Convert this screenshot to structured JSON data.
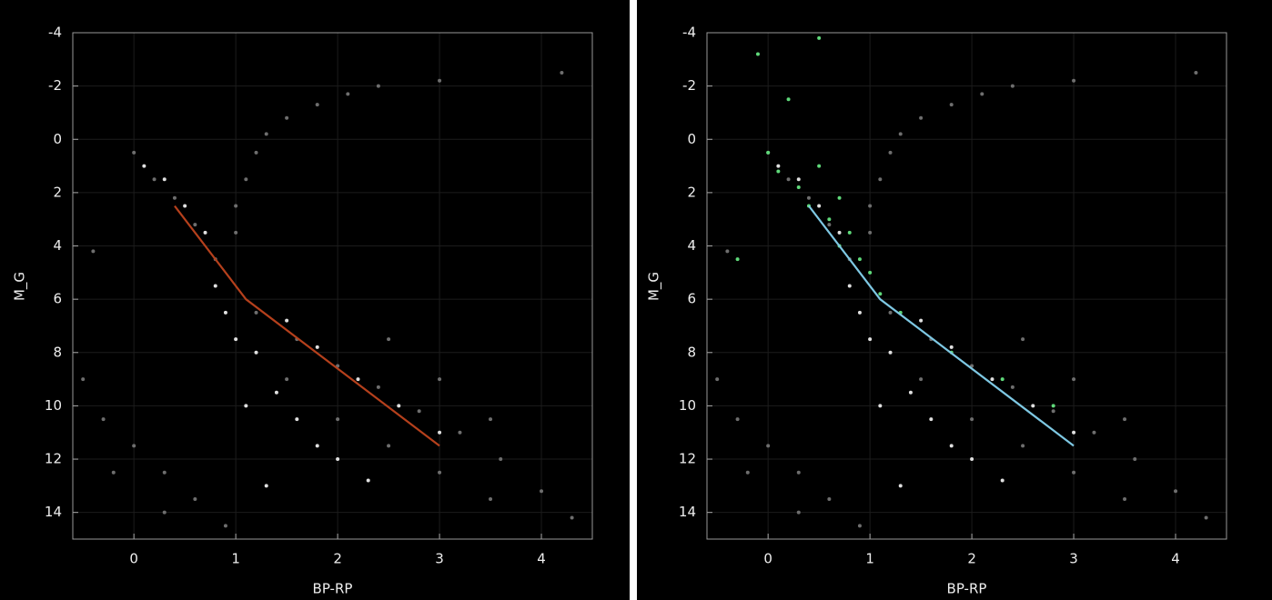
{
  "chart_data": [
    {
      "type": "scatter",
      "xlabel": "BP-RP",
      "ylabel": "M_G",
      "xlim": [
        -0.6,
        4.5
      ],
      "ylim": [
        -4,
        15
      ],
      "invert_y": true,
      "xticks": [
        0,
        1,
        2,
        3,
        4
      ],
      "yticks": [
        -4,
        -2,
        0,
        2,
        4,
        6,
        8,
        10,
        12,
        14
      ],
      "grid": true,
      "grid_color": "#1c1c1c",
      "series": [
        {
          "type": "scatter",
          "color": "#6e6e6e",
          "x": [
            1.0,
            1.1,
            1.2,
            1.3,
            1.5,
            1.8,
            2.1,
            2.4,
            1.0,
            0.0,
            0.2,
            0.4,
            0.6,
            0.8,
            1.2,
            1.6,
            2.0,
            2.4,
            2.8,
            3.2,
            3.6,
            4.0,
            4.3,
            1.5,
            2.0,
            2.5,
            3.0,
            3.5,
            2.5,
            3.0,
            3.5,
            -0.5,
            -0.3,
            0.0,
            0.3,
            0.6,
            0.9,
            -0.2,
            0.3,
            -0.4,
            3.0,
            4.2
          ],
          "values": [
            2.5,
            1.5,
            0.5,
            -0.2,
            -0.8,
            -1.3,
            -1.7,
            -2.0,
            3.5,
            0.5,
            1.5,
            2.2,
            3.2,
            4.5,
            6.5,
            7.5,
            8.5,
            9.3,
            10.2,
            11.0,
            12.0,
            13.2,
            14.2,
            9,
            10.5,
            11.5,
            12.5,
            13.5,
            7.5,
            9,
            10.5,
            9,
            10.5,
            11.5,
            12.5,
            13.5,
            14.5,
            12.5,
            14,
            4.2,
            -2.2,
            -2.5
          ]
        },
        {
          "type": "scatter",
          "color": "#e0e0e0",
          "x": [
            0.8,
            0.9,
            1.0,
            1.2,
            1.4,
            1.6,
            1.8,
            2.0,
            2.3,
            0.5,
            0.3,
            0.1,
            0.7,
            1.5,
            1.8,
            2.2,
            2.6,
            3.0,
            1.1,
            1.3
          ],
          "values": [
            5.5,
            6.5,
            7.5,
            8.0,
            9.5,
            10.5,
            11.5,
            12.0,
            12.8,
            2.5,
            1.5,
            1.0,
            3.5,
            6.8,
            7.8,
            9.0,
            10.0,
            11.0,
            10,
            13
          ]
        },
        {
          "type": "line",
          "color": "#b5401c",
          "x": [
            0.4,
            1.1,
            3.0
          ],
          "values": [
            2.5,
            6.0,
            11.5
          ]
        }
      ]
    },
    {
      "type": "scatter",
      "xlabel": "BP-RP",
      "ylabel": "M_G",
      "xlim": [
        -0.6,
        4.5
      ],
      "ylim": [
        -4,
        15
      ],
      "invert_y": true,
      "xticks": [
        0,
        1,
        2,
        3,
        4
      ],
      "yticks": [
        -4,
        -2,
        0,
        2,
        4,
        6,
        8,
        10,
        12,
        14
      ],
      "grid": true,
      "grid_color": "#1c1c1c",
      "series": [
        {
          "type": "scatter",
          "color": "#6e6e6e",
          "x": [
            1.0,
            1.1,
            1.2,
            1.3,
            1.5,
            1.8,
            2.1,
            2.4,
            1.0,
            0.0,
            0.2,
            0.4,
            0.6,
            0.8,
            1.2,
            1.6,
            2.0,
            2.4,
            2.8,
            3.2,
            3.6,
            4.0,
            4.3,
            1.5,
            2.0,
            2.5,
            3.0,
            3.5,
            2.5,
            3.0,
            3.5,
            -0.5,
            -0.3,
            0.0,
            0.3,
            0.6,
            0.9,
            -0.2,
            0.3,
            -0.4,
            3.0,
            4.2
          ],
          "values": [
            2.5,
            1.5,
            0.5,
            -0.2,
            -0.8,
            -1.3,
            -1.7,
            -2.0,
            3.5,
            0.5,
            1.5,
            2.2,
            3.2,
            4.5,
            6.5,
            7.5,
            8.5,
            9.3,
            10.2,
            11.0,
            12.0,
            13.2,
            14.2,
            9,
            10.5,
            11.5,
            12.5,
            13.5,
            7.5,
            9,
            10.5,
            9,
            10.5,
            11.5,
            12.5,
            13.5,
            14.5,
            12.5,
            14,
            4.2,
            -2.2,
            -2.5
          ]
        },
        {
          "type": "scatter",
          "color": "#e0e0e0",
          "x": [
            0.8,
            0.9,
            1.0,
            1.2,
            1.4,
            1.6,
            1.8,
            2.0,
            2.3,
            0.5,
            0.3,
            0.1,
            0.7,
            1.5,
            1.8,
            2.2,
            2.6,
            3.0,
            1.1,
            1.3
          ],
          "values": [
            5.5,
            6.5,
            7.5,
            8.0,
            9.5,
            10.5,
            11.5,
            12.0,
            12.8,
            2.5,
            1.5,
            1.0,
            3.5,
            6.8,
            7.8,
            9.0,
            10.0,
            11.0,
            10,
            13
          ]
        },
        {
          "type": "scatter",
          "color": "#5fd97a",
          "x": [
            0.0,
            0.1,
            0.3,
            0.4,
            0.6,
            0.7,
            0.8,
            0.9,
            1.0,
            0.2,
            -0.1,
            0.5,
            -0.3,
            1.3,
            1.8,
            2.3,
            2.8,
            0.5,
            0.7,
            1.1
          ],
          "values": [
            0.5,
            1.2,
            1.8,
            2.5,
            3.0,
            4.0,
            3.5,
            4.5,
            5.0,
            -1.5,
            -3.2,
            -3.8,
            4.5,
            6.5,
            8.0,
            9.0,
            10.0,
            1.0,
            2.2,
            5.8
          ]
        },
        {
          "type": "line",
          "color": "#7ec8e3",
          "x": [
            0.4,
            1.1,
            3.0
          ],
          "values": [
            2.5,
            6.0,
            11.5
          ]
        }
      ]
    }
  ]
}
